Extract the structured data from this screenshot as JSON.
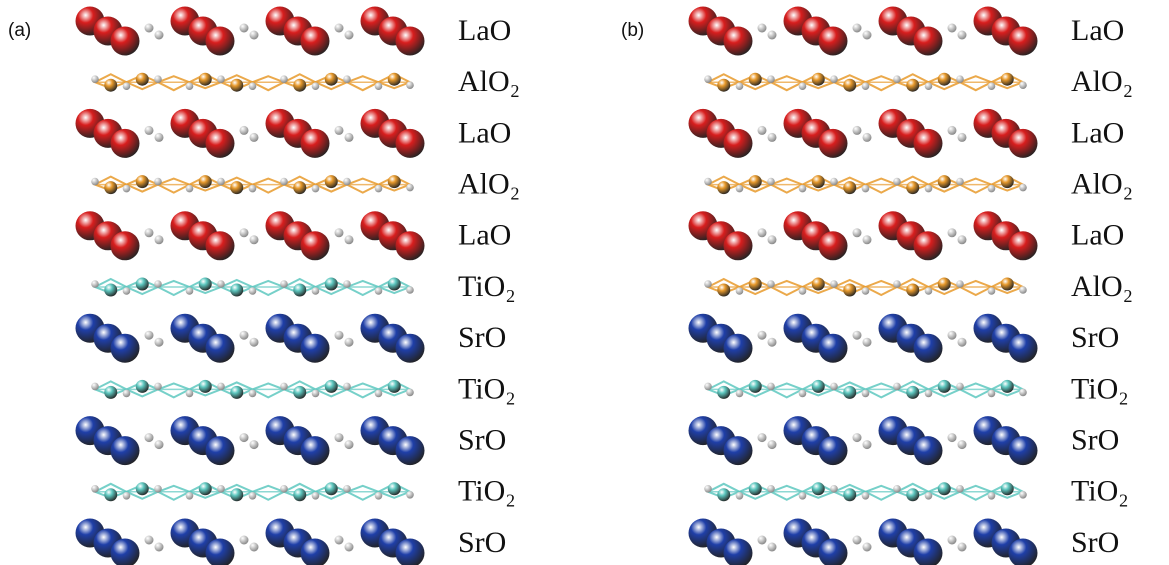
{
  "panels": [
    {
      "label": "(a)",
      "layers": [
        {
          "label": "LaO",
          "color": "#d81e1e"
        },
        {
          "label": "AlO₂",
          "color": "#e89a2c"
        },
        {
          "label": "LaO",
          "color": "#d81e1e"
        },
        {
          "label": "AlO₂",
          "color": "#e89a2c"
        },
        {
          "label": "LaO",
          "color": "#d81e1e"
        },
        {
          "label": "TiO₂",
          "color": "#5ec8c0"
        },
        {
          "label": "SrO",
          "color": "#1f3fa8"
        },
        {
          "label": "TiO₂",
          "color": "#5ec8c0"
        },
        {
          "label": "SrO",
          "color": "#1f3fa8"
        },
        {
          "label": "TiO₂",
          "color": "#5ec8c0"
        },
        {
          "label": "SrO",
          "color": "#1f3fa8"
        }
      ]
    },
    {
      "label": "(b)",
      "layers": [
        {
          "label": "LaO",
          "color": "#d81e1e"
        },
        {
          "label": "AlO₂",
          "color": "#e89a2c"
        },
        {
          "label": "LaO",
          "color": "#d81e1e"
        },
        {
          "label": "AlO₂",
          "color": "#e89a2c"
        },
        {
          "label": "LaO",
          "color": "#d81e1e"
        },
        {
          "label": "AlO₂",
          "color": "#e89a2c"
        },
        {
          "label": "SrO",
          "color": "#1f3fa8"
        },
        {
          "label": "TiO₂",
          "color": "#5ec8c0"
        },
        {
          "label": "SrO",
          "color": "#1f3fa8"
        },
        {
          "label": "TiO₂",
          "color": "#5ec8c0"
        },
        {
          "label": "SrO",
          "color": "#1f3fa8"
        }
      ]
    }
  ]
}
